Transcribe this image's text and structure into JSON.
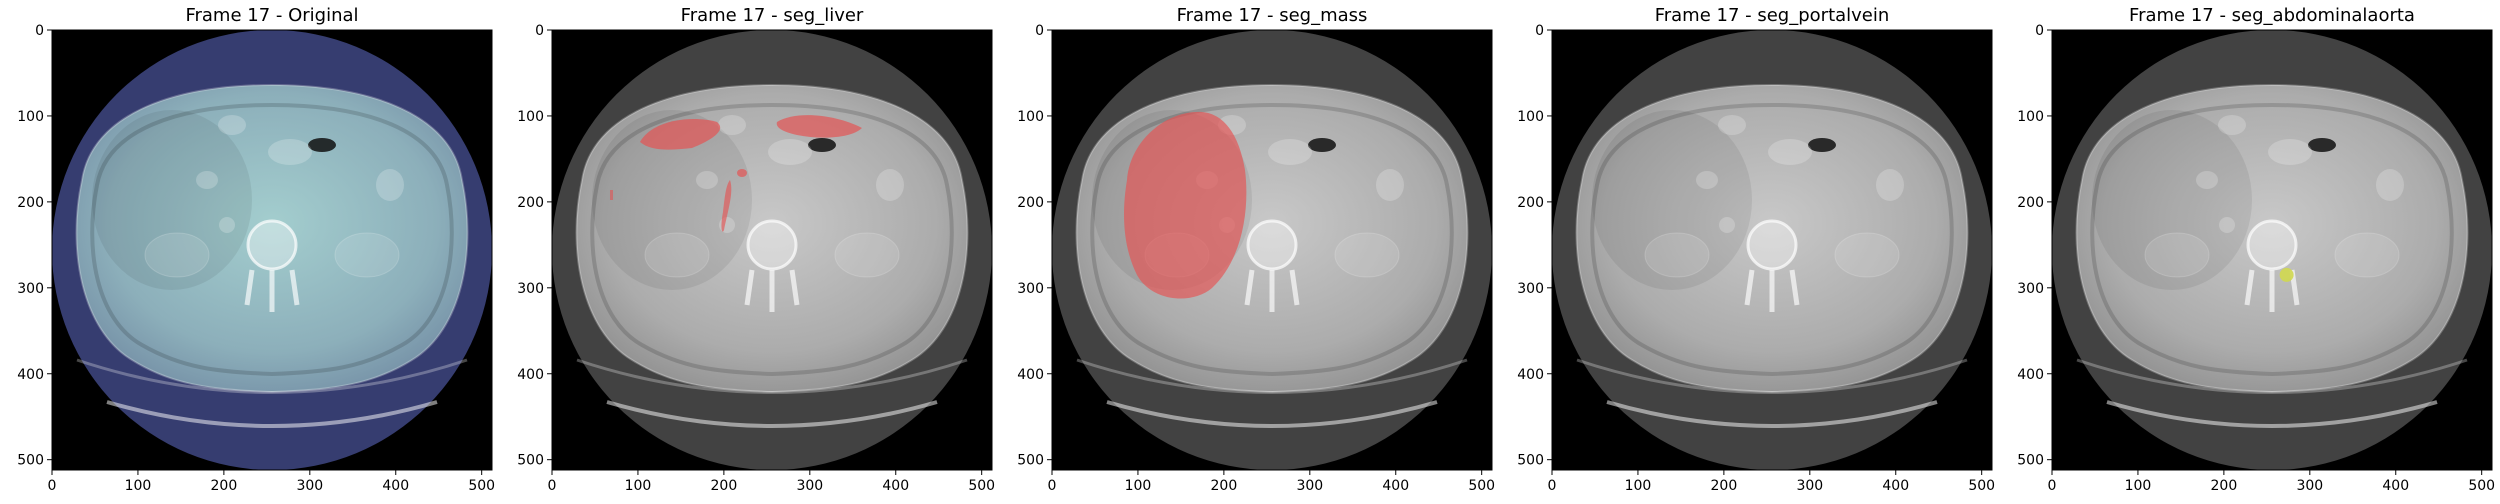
{
  "figure": {
    "panels": [
      {
        "title": "Frame 17 - Original",
        "overlay": null,
        "tint": "#a9d5d3"
      },
      {
        "title": "Frame 17 - seg_liver",
        "overlay": "liver",
        "tint": "#cfcfcf"
      },
      {
        "title": "Frame 17 - seg_mass",
        "overlay": "mass",
        "tint": "#cfcfcf"
      },
      {
        "title": "Frame 17 - seg_portalvein",
        "overlay": "portalvein",
        "tint": "#cfcfcf"
      },
      {
        "title": "Frame 17 - seg_abdominalaorta",
        "overlay": "abdominalaorta",
        "tint": "#cfcfcf"
      }
    ],
    "x_ticks": [
      "0",
      "100",
      "200",
      "300",
      "400",
      "500"
    ],
    "y_ticks": [
      "0",
      "100",
      "200",
      "300",
      "400",
      "500"
    ],
    "colors": {
      "original_background": "#363d70",
      "gray_background": "#424242",
      "mask_red": "#e45454",
      "mask_yellow": "#d0d84f"
    }
  }
}
